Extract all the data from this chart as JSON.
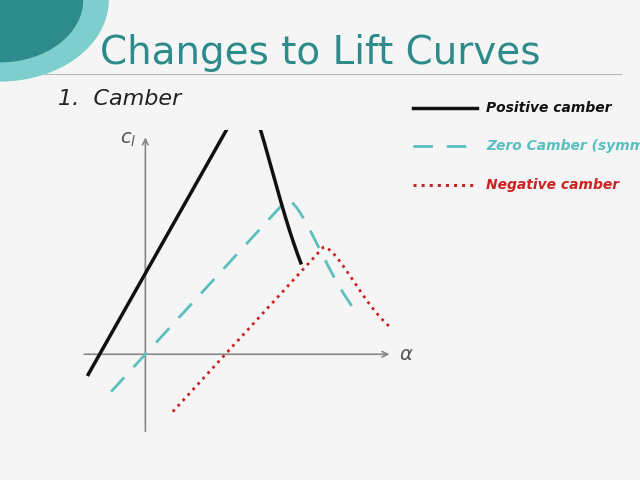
{
  "title": "Changes to Lift Curves",
  "subtitle": "1.  Camber",
  "title_color": "#2E8B8B",
  "title_fontsize": 28,
  "subtitle_fontsize": 16,
  "bg_color": "#F5F5F5",
  "pos_color": "#111111",
  "zero_color": "#5BBFBF",
  "neg_color": "#CC2222",
  "axis_color": "#888888",
  "teal_dark": "#2E8B8B",
  "teal_light": "#7ECECE",
  "pos_label": "Positive camber",
  "zero_label": "Zero Camber (symmetric)",
  "neg_label": "Negative camber"
}
